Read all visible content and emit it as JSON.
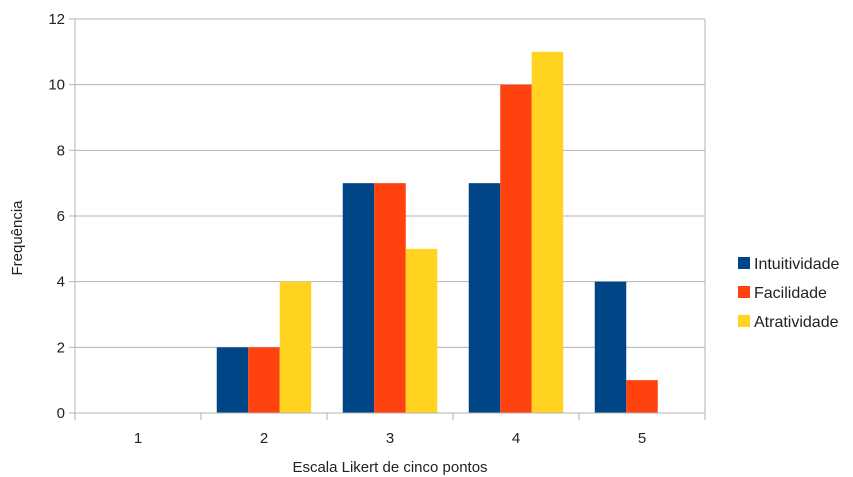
{
  "chart_data": {
    "type": "bar",
    "categories": [
      "1",
      "2",
      "3",
      "4",
      "5"
    ],
    "series": [
      {
        "name": "Intuitividade",
        "color": "#004586",
        "values": [
          0,
          2,
          7,
          7,
          4
        ]
      },
      {
        "name": "Facilidade",
        "color": "#FF420E",
        "values": [
          0,
          2,
          7,
          10,
          1
        ]
      },
      {
        "name": "Atratividade",
        "color": "#FFD320",
        "values": [
          0,
          4,
          5,
          11,
          0
        ]
      }
    ],
    "xlabel": "Escala Likert de cinco pontos",
    "ylabel": "Frequência",
    "ylim": [
      0,
      12
    ],
    "yticks": [
      "0",
      "2",
      "4",
      "6",
      "8",
      "10",
      "12"
    ],
    "grid": "horizontal",
    "legend_position": "right"
  }
}
